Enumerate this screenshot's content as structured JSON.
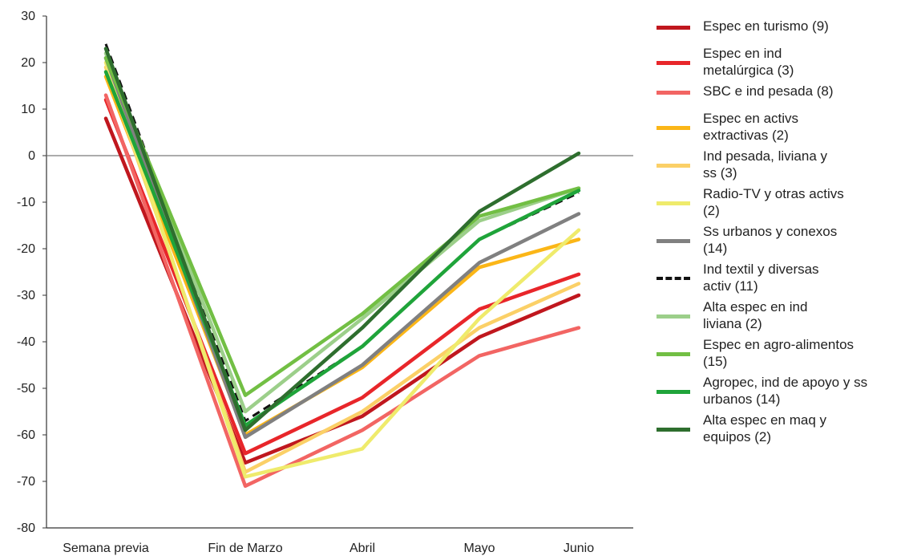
{
  "chart_data": {
    "type": "line",
    "title": "",
    "xlabel": "",
    "ylabel": "",
    "categories": [
      "Semana previa",
      "Fin de Marzo",
      "Abril",
      "Mayo",
      "Junio"
    ],
    "ylim": [
      -80,
      30
    ],
    "yticks": [
      "30",
      "20",
      "10",
      "0",
      "-10",
      "-20",
      "-30",
      "-40",
      "-50",
      "-60",
      "-70",
      "-80"
    ],
    "grid": false,
    "zero_line": true,
    "legend_position": "right",
    "series": [
      {
        "name": "Espec en turismo (9)",
        "color": "#c0171e",
        "dashed": false,
        "values": [
          8,
          -66,
          -56,
          -39,
          -30
        ]
      },
      {
        "name": "Espec en ind metalúrgica (3)",
        "color": "#e8262a",
        "dashed": false,
        "values": [
          12,
          -64,
          -52,
          -33,
          -25.5
        ]
      },
      {
        "name": "SBC e ind pesada (8)",
        "color": "#f26563",
        "dashed": false,
        "values": [
          13,
          -71,
          -59,
          -43,
          -37
        ]
      },
      {
        "name": "Espec en activs extractivas (2)",
        "color": "#fbb617",
        "dashed": false,
        "values": [
          17,
          -60,
          -45.5,
          -24,
          -18
        ]
      },
      {
        "name": "Ind pesada, liviana y ss (3)",
        "color": "#fbd067",
        "dashed": false,
        "values": [
          19,
          -68,
          -55,
          -37,
          -27.5
        ]
      },
      {
        "name": "Radio-TV y otras activs (2)",
        "color": "#efeb6c",
        "dashed": false,
        "values": [
          20,
          -69,
          -63,
          -35,
          -16
        ]
      },
      {
        "name": "Ss urbanos y conexos (14)",
        "color": "#808080",
        "dashed": false,
        "values": [
          21,
          -60.5,
          -45,
          -23,
          -12.5
        ]
      },
      {
        "name": "Ind textil y diversas activ (11)",
        "color": "#111111",
        "dashed": true,
        "values": [
          24,
          -57,
          -41,
          -18,
          -8
        ]
      },
      {
        "name": "Alta espec en ind liviana (2)",
        "color": "#9ccf8a",
        "dashed": false,
        "values": [
          22,
          -55,
          -35,
          -14,
          -7
        ]
      },
      {
        "name": "Espec en agro-alimentos (15)",
        "color": "#72bf44",
        "dashed": false,
        "values": [
          21,
          -51.5,
          -34,
          -13,
          -7
        ]
      },
      {
        "name": "Agropec, ind de apoyo y ss urbanos (14)",
        "color": "#1fa43a",
        "dashed": false,
        "values": [
          18,
          -58,
          -41,
          -18,
          -7.5
        ]
      },
      {
        "name": "Alta espec en maq y equipos (2)",
        "color": "#2e6e2e",
        "dashed": false,
        "values": [
          23,
          -59,
          -37,
          -12,
          0.5
        ]
      }
    ]
  },
  "legend": {
    "items": [
      {
        "lines": [
          "Espec en turismo (9)"
        ]
      },
      {
        "lines": [
          "Espec en ind",
          "metalúrgica (3)"
        ]
      },
      {
        "lines": [
          "SBC e ind pesada (8)"
        ]
      },
      {
        "lines": [
          "Espec en activs",
          "extractivas (2)"
        ]
      },
      {
        "lines": [
          "Ind pesada, liviana y",
          "ss (3)"
        ]
      },
      {
        "lines": [
          "Radio-TV y otras activs",
          "(2)"
        ]
      },
      {
        "lines": [
          "Ss urbanos y conexos",
          "(14)"
        ]
      },
      {
        "lines": [
          "Ind textil y diversas",
          "activ (11)"
        ]
      },
      {
        "lines": [
          "Alta espec en ind",
          "liviana (2)"
        ]
      },
      {
        "lines": [
          "Espec en agro-alimentos",
          "(15)"
        ]
      },
      {
        "lines": [
          "Agropec, ind de apoyo y ss",
          "urbanos (14)"
        ]
      },
      {
        "lines": [
          "Alta espec en maq y",
          "equipos (2)"
        ]
      }
    ]
  }
}
